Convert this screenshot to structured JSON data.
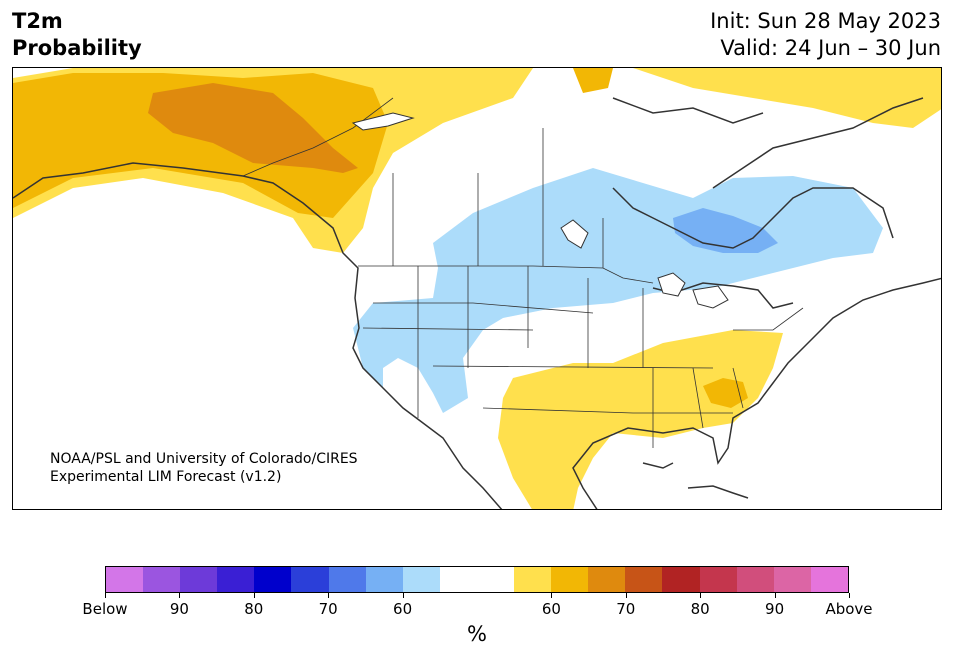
{
  "header": {
    "variable": "T2m",
    "product": "Probability",
    "init": "Init: Sun 28 May 2023",
    "valid": "Valid: 24 Jun – 30 Jun"
  },
  "map": {
    "credit_line1": "NOAA/PSL and University of Colorado/CIRES",
    "credit_line2": "Experimental LIM Forecast (v1.2)"
  },
  "colorbar": {
    "unit": "%",
    "colors": [
      "#d376e8",
      "#9b55e0",
      "#6d3ad9",
      "#3a1fd4",
      "#0000cc",
      "#2b3fd9",
      "#4f79ea",
      "#76b0f4",
      "#acdcfa",
      "#ffffff",
      "#ffffff",
      "#ffe04d",
      "#f2b705",
      "#df8a0e",
      "#c75417",
      "#b12323",
      "#c4364d",
      "#d14e7c",
      "#dc65a5",
      "#e574dc"
    ],
    "tick_labels": [
      "Below",
      "90",
      "80",
      "70",
      "60",
      "60",
      "70",
      "80",
      "90",
      "Above"
    ]
  },
  "palette": {
    "below_60": "#acdcfa",
    "below_70": "#76b0f4",
    "above_60": "#ffe04d",
    "above_70": "#f2b705",
    "above_80": "#df8a0e",
    "coast": "#333333"
  }
}
